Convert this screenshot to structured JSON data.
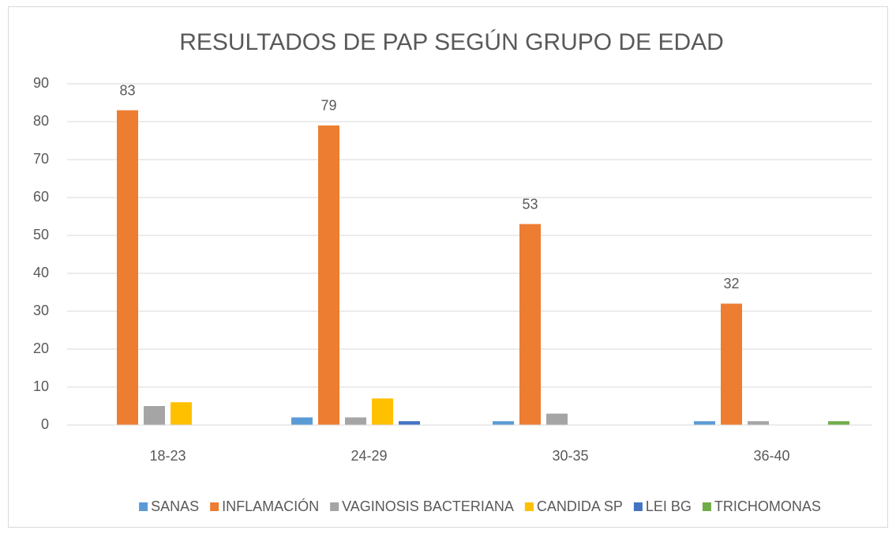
{
  "chart_data": {
    "type": "bar",
    "title": "RESULTADOS DE PAP SEGÚN GRUPO DE EDAD",
    "categories": [
      "18-23",
      "24-29",
      "30-35",
      "36-40"
    ],
    "series": [
      {
        "name": "SANAS",
        "color": "#5b9bd5",
        "values": [
          0,
          2,
          1,
          1
        ]
      },
      {
        "name": "INFLAMACIÓN",
        "color": "#ed7d31",
        "values": [
          83,
          79,
          53,
          32
        ],
        "data_labels": true
      },
      {
        "name": "VAGINOSIS BACTERIANA",
        "color": "#a5a5a5",
        "values": [
          5,
          2,
          3,
          1
        ]
      },
      {
        "name": "CANDIDA SP",
        "color": "#ffc000",
        "values": [
          6,
          7,
          0,
          0
        ]
      },
      {
        "name": "LEI BG",
        "color": "#4472c4",
        "values": [
          0,
          1,
          0,
          0
        ]
      },
      {
        "name": "TRICHOMONAS",
        "color": "#70ad47",
        "values": [
          0,
          0,
          0,
          1
        ]
      }
    ],
    "ylim": [
      0,
      90
    ],
    "yticks": [
      0,
      10,
      20,
      30,
      40,
      50,
      60,
      70,
      80,
      90
    ],
    "grid": true,
    "legend": "bottom"
  }
}
